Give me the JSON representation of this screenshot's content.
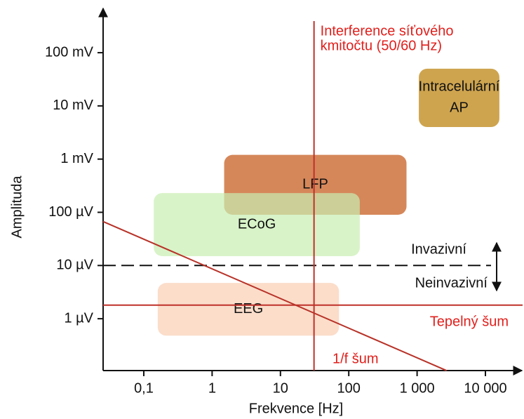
{
  "chart_data": {
    "type": "region",
    "x_label": "Frekvence [Hz]",
    "y_label": "Amplituda",
    "log_x": true,
    "log_y": true,
    "xlim": [
      0.0254,
      35000
    ],
    "ylim": [
      1.06e-07,
      0.62
    ],
    "xticks": [
      {
        "value": 0.1,
        "label": "0,1"
      },
      1,
      10,
      100,
      {
        "value": 1000,
        "label": "1 000"
      },
      {
        "value": 10000,
        "label": "10 000"
      }
    ],
    "yticks": [
      {
        "value": 0.1,
        "label": "100 mV"
      },
      {
        "value": 0.01,
        "label": "10 mV"
      },
      {
        "value": 0.001,
        "label": "1 mV"
      },
      {
        "value": 0.0001,
        "label": "100 µV"
      },
      {
        "value": 1e-05,
        "label": "10 µV"
      },
      {
        "value": 1e-06,
        "label": "1 µV"
      }
    ],
    "regions": [
      {
        "label_lines": [
          "Intracelulární",
          "AP"
        ],
        "x": [
          1060,
          16000
        ],
        "y": [
          0.05,
          0.004
        ],
        "color": "#c99a3c"
      },
      {
        "label_lines": [
          "LFP"
        ],
        "x": [
          1.5,
          700
        ],
        "y": [
          0.0012,
          9e-05
        ],
        "color": "#d07a48"
      },
      {
        "label_lines": [
          "ECoG"
        ],
        "x": [
          0.14,
          145
        ],
        "y": [
          0.00023,
          1.5e-05
        ],
        "color": "#c8eeb0"
      },
      {
        "label_lines": [
          "EEG"
        ],
        "x": [
          0.16,
          72
        ],
        "y": [
          4.7e-06,
          4.8e-07
        ],
        "color": "#fbd9c4"
      }
    ],
    "mains_interference": {
      "x": 31,
      "label_lines": [
        "Interference síťového",
        "kmitočtu (50/60 Hz)"
      ],
      "color": "#c0302a"
    },
    "thermal_noise": {
      "y": 1.8e-06,
      "label": "Tepelný šum",
      "color": "#c0302a"
    },
    "one_over_f_noise": {
      "x": [
        0.0254,
        2700
      ],
      "y": [
        6.7e-05,
        1.06e-07
      ],
      "label": "1/f šum",
      "color": "#b83228"
    },
    "invasive_boundary": {
      "y": 1e-05,
      "label_above": "Invazivní",
      "label_below": "Neinvazivní"
    }
  }
}
